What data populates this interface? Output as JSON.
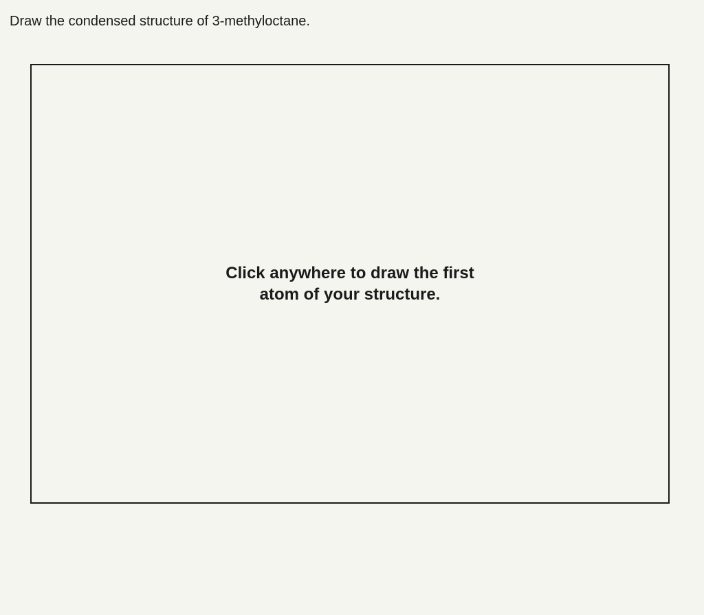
{
  "question": {
    "prompt": "Draw the condensed structure of 3-methyloctane."
  },
  "canvas": {
    "placeholder_line1": "Click anywhere to draw the first",
    "placeholder_line2": "atom of your structure.",
    "border_color": "#1a1a1a",
    "background_color": "transparent"
  },
  "colors": {
    "text": "#1a1a1a",
    "background": "#f5f5f0"
  }
}
